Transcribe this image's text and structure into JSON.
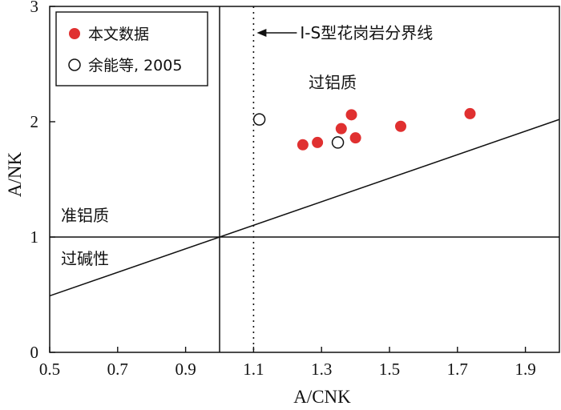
{
  "chart_data": {
    "type": "scatter",
    "xlabel": "A/CNK",
    "ylabel": "A/NK",
    "xlim": [
      0.5,
      2.0
    ],
    "ylim": [
      0,
      3
    ],
    "x_ticks": [
      0.5,
      0.7,
      0.9,
      1.1,
      1.3,
      1.5,
      1.7,
      1.9
    ],
    "x_tick_labels": [
      "0.5",
      "0.7",
      "0.9",
      "1.1",
      "1.3",
      "1.5",
      "1.7",
      "1.9"
    ],
    "y_ticks": [
      0,
      1,
      2,
      3
    ],
    "y_tick_labels": [
      "0",
      "1",
      "2",
      "3"
    ],
    "series": [
      {
        "name": "本文数据",
        "marker": "filled-circle",
        "color": "#e03030",
        "points": [
          {
            "x": 1.245,
            "y": 1.8
          },
          {
            "x": 1.288,
            "y": 1.82
          },
          {
            "x": 1.358,
            "y": 1.94
          },
          {
            "x": 1.388,
            "y": 2.06
          },
          {
            "x": 1.4,
            "y": 1.86
          },
          {
            "x": 1.533,
            "y": 1.96
          },
          {
            "x": 1.737,
            "y": 2.07
          }
        ]
      },
      {
        "name": "余能等, 2005",
        "marker": "open-circle",
        "color": "#111111",
        "points": [
          {
            "x": 1.117,
            "y": 2.02
          },
          {
            "x": 1.348,
            "y": 1.82
          }
        ]
      }
    ],
    "reference_lines": [
      {
        "kind": "vertical",
        "x": 1.0,
        "style": "solid"
      },
      {
        "kind": "horizontal",
        "y": 1.0,
        "style": "solid"
      },
      {
        "kind": "vertical",
        "x": 1.1,
        "style": "dotted"
      },
      {
        "kind": "segment",
        "from": [
          0.5,
          0.49
        ],
        "to": [
          2.0,
          2.02
        ],
        "style": "solid"
      }
    ],
    "annotations": {
      "boundary_label": "I-S型花岗岩分界线",
      "peraluminous": "过铝质",
      "metaluminous": "准铝质",
      "peralkaline": "过碱性"
    },
    "legend_position": "top-left",
    "grid": false
  }
}
